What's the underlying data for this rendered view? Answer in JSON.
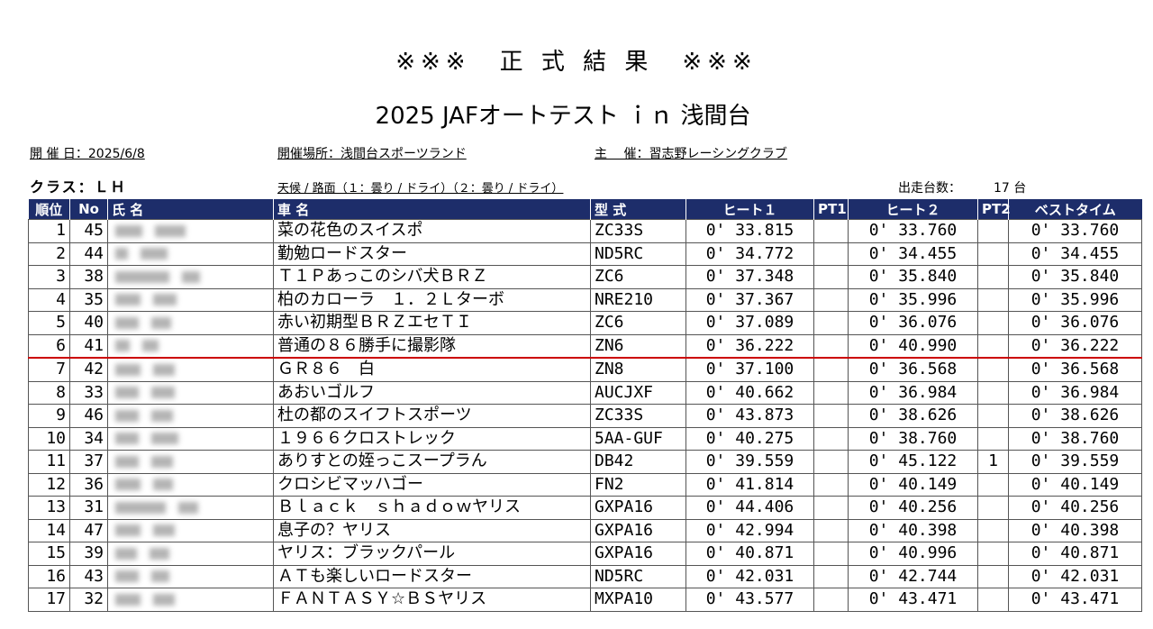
{
  "header": {
    "title": "※※※　正 式 結 果　※※※",
    "subtitle": "2025 JAFオートテスト ｉｎ 浅間台"
  },
  "info": {
    "date": "開 催 日：2025/6/8",
    "venue": "開催場所：浅間台スポーツランド",
    "organizer": "主　 催：習志野レーシングクラブ",
    "class_label": "クラス：ＬＨ",
    "weather": "天候 / 路面（１：曇り / ドライ）（２：曇り / ドライ）",
    "entries_label": "出走台数：",
    "entries_count": "17 台"
  },
  "table": {
    "columns": [
      "順位",
      "No",
      "氏 名",
      "車 名",
      "型 式",
      "ヒート１",
      "PT1",
      "ヒート２",
      "PT2",
      "ベストタイム"
    ],
    "rows": [
      {
        "rank": "1",
        "no": "45",
        "car": "菜の花色のスイスポ",
        "model": "ZC33S",
        "heat1": "0' 33.815",
        "pt1": "",
        "heat2": "0' 33.760",
        "pt2": "",
        "best": "0' 33.760"
      },
      {
        "rank": "2",
        "no": "44",
        "car": "勤勉ロードスター",
        "model": "ND5RC",
        "heat1": "0' 34.772",
        "pt1": "",
        "heat2": "0' 34.455",
        "pt2": "",
        "best": "0' 34.455"
      },
      {
        "rank": "3",
        "no": "38",
        "car": "Ｔ１Ｐあっこのシバ犬ＢＲＺ",
        "model": "ZC6",
        "heat1": "0' 37.348",
        "pt1": "",
        "heat2": "0' 35.840",
        "pt2": "",
        "best": "0' 35.840"
      },
      {
        "rank": "4",
        "no": "35",
        "car": "柏のカローラ　１．２Ｌターボ",
        "model": "NRE210",
        "heat1": "0' 37.367",
        "pt1": "",
        "heat2": "0' 35.996",
        "pt2": "",
        "best": "0' 35.996"
      },
      {
        "rank": "5",
        "no": "40",
        "car": "赤い初期型ＢＲＺエセＴＩ",
        "model": "ZC6",
        "heat1": "0' 37.089",
        "pt1": "",
        "heat2": "0' 36.076",
        "pt2": "",
        "best": "0' 36.076"
      },
      {
        "rank": "6",
        "no": "41",
        "car": "普通の８６勝手に撮影隊",
        "model": "ZN6",
        "heat1": "0' 36.222",
        "pt1": "",
        "heat2": "0' 40.990",
        "pt2": "",
        "best": "0' 36.222"
      },
      {
        "rank": "7",
        "no": "42",
        "car": "ＧＲ８６　白",
        "model": "ZN8",
        "heat1": "0' 37.100",
        "pt1": "",
        "heat2": "0' 36.568",
        "pt2": "",
        "best": "0' 36.568"
      },
      {
        "rank": "8",
        "no": "33",
        "car": "あおいゴルフ",
        "model": "AUCJXF",
        "heat1": "0' 40.662",
        "pt1": "",
        "heat2": "0' 36.984",
        "pt2": "",
        "best": "0' 36.984"
      },
      {
        "rank": "9",
        "no": "46",
        "car": "杜の都のスイフトスポーツ",
        "model": "ZC33S",
        "heat1": "0' 43.873",
        "pt1": "",
        "heat2": "0' 38.626",
        "pt2": "",
        "best": "0' 38.626"
      },
      {
        "rank": "10",
        "no": "34",
        "car": "１９６６クロストレック",
        "model": "5AA-GUF",
        "heat1": "0' 40.275",
        "pt1": "",
        "heat2": "0' 38.760",
        "pt2": "",
        "best": "0' 38.760"
      },
      {
        "rank": "11",
        "no": "37",
        "car": "ありすとの姪っこスープラん",
        "model": "DB42",
        "heat1": "0' 39.559",
        "pt1": "",
        "heat2": "0' 45.122",
        "pt2": "1",
        "best": "0' 39.559"
      },
      {
        "rank": "12",
        "no": "36",
        "car": "クロシビマッハゴー",
        "model": "FN2",
        "heat1": "0' 41.814",
        "pt1": "",
        "heat2": "0' 40.149",
        "pt2": "",
        "best": "0' 40.149"
      },
      {
        "rank": "13",
        "no": "31",
        "car": "Ｂｌａｃｋ　ｓｈａｄｏｗヤリス",
        "model": "GXPA16",
        "heat1": "0' 44.406",
        "pt1": "",
        "heat2": "0' 40.256",
        "pt2": "",
        "best": "0' 40.256"
      },
      {
        "rank": "14",
        "no": "47",
        "car": "息子の？ヤリス",
        "model": "GXPA16",
        "heat1": "0' 42.994",
        "pt1": "",
        "heat2": "0' 40.398",
        "pt2": "",
        "best": "0' 40.398"
      },
      {
        "rank": "15",
        "no": "39",
        "car": "ヤリス：ブラックパール",
        "model": "GXPA16",
        "heat1": "0' 40.871",
        "pt1": "",
        "heat2": "0' 40.996",
        "pt2": "",
        "best": "0' 40.871"
      },
      {
        "rank": "16",
        "no": "43",
        "car": "ＡＴも楽しいロードスター",
        "model": "ND5RC",
        "heat1": "0' 42.031",
        "pt1": "",
        "heat2": "0' 42.744",
        "pt2": "",
        "best": "0' 42.031"
      },
      {
        "rank": "17",
        "no": "32",
        "car": "ＦＡＮＴＡＳＹ☆ＢＳヤリス",
        "model": "MXPA10",
        "heat1": "0' 43.577",
        "pt1": "",
        "heat2": "0' 43.471",
        "pt2": "",
        "best": "0' 43.471"
      }
    ]
  },
  "colors": {
    "header_bg": "#1d2d6a",
    "cut_line": "#cc0000"
  }
}
